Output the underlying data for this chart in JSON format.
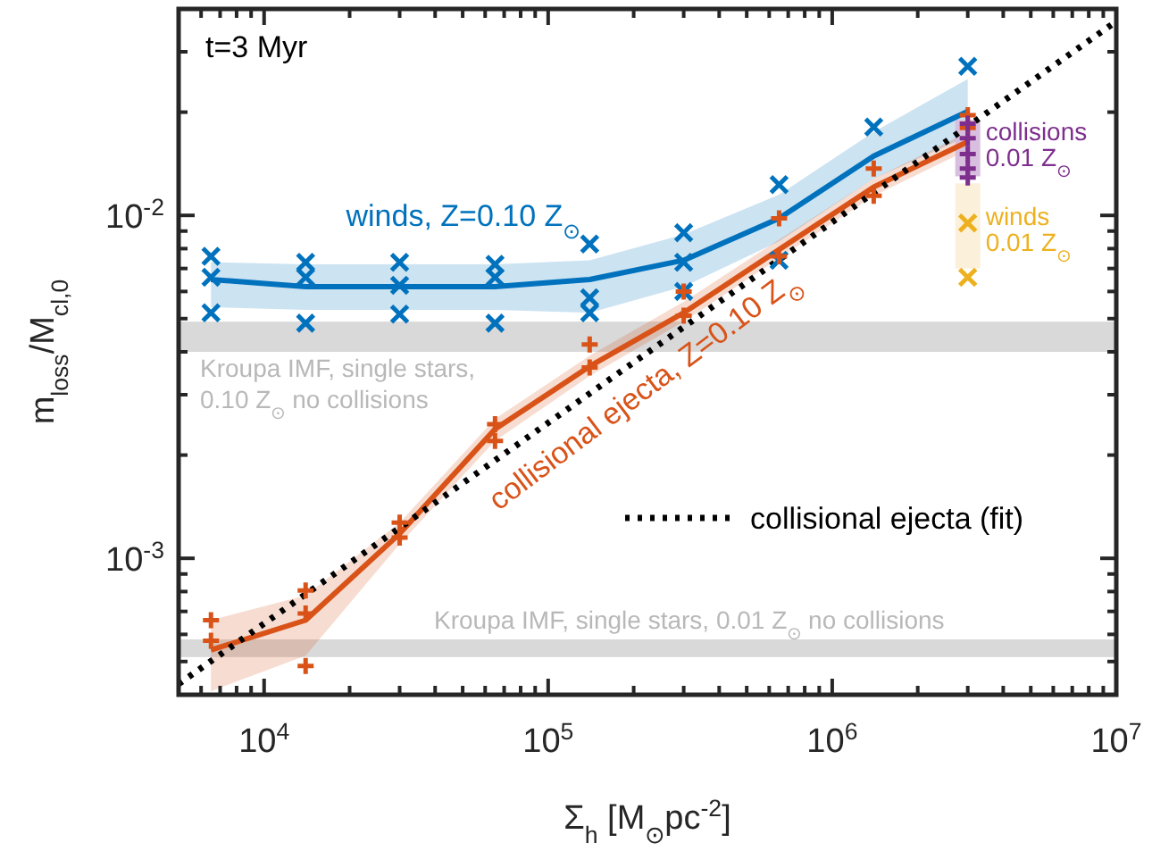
{
  "chart_data": {
    "type": "line",
    "xlabel": "Σ$_{h}$ [M$_{⊙}$pc$^{-2}$]",
    "ylabel": "m$_{loss}$/M$_{cl,0}$",
    "log": "xy",
    "xlim": [
      5000,
      10000000
    ],
    "ylim": [
      0.0004,
      0.04
    ],
    "xticks": [
      {
        "value": 6000,
        "label": null
      },
      {
        "value": 7000,
        "label": null
      },
      {
        "value": 8000,
        "label": null
      },
      {
        "value": 9000,
        "label": null
      },
      {
        "value": 10000,
        "label": "10$^{4}$"
      },
      {
        "value": 20000,
        "label": null
      },
      {
        "value": 30000,
        "label": null
      },
      {
        "value": 40000,
        "label": null
      },
      {
        "value": 50000,
        "label": null
      },
      {
        "value": 60000,
        "label": null
      },
      {
        "value": 70000,
        "label": null
      },
      {
        "value": 80000,
        "label": null
      },
      {
        "value": 90000,
        "label": null
      },
      {
        "value": 100000,
        "label": "10$^{5}$"
      },
      {
        "value": 200000,
        "label": null
      },
      {
        "value": 300000,
        "label": null
      },
      {
        "value": 400000,
        "label": null
      },
      {
        "value": 500000,
        "label": null
      },
      {
        "value": 600000,
        "label": null
      },
      {
        "value": 700000,
        "label": null
      },
      {
        "value": 800000,
        "label": null
      },
      {
        "value": 900000,
        "label": null
      },
      {
        "value": 1000000,
        "label": "10$^{6}$"
      },
      {
        "value": 2000000,
        "label": null
      },
      {
        "value": 3000000,
        "label": null
      },
      {
        "value": 4000000,
        "label": null
      },
      {
        "value": 5000000,
        "label": null
      },
      {
        "value": 6000000,
        "label": null
      },
      {
        "value": 7000000,
        "label": null
      },
      {
        "value": 8000000,
        "label": null
      },
      {
        "value": 9000000,
        "label": null
      },
      {
        "value": 10000000,
        "label": "10$^{7}$"
      }
    ],
    "yticks": [
      {
        "value": 0.0005,
        "label": null
      },
      {
        "value": 0.0006,
        "label": null
      },
      {
        "value": 0.0007,
        "label": null
      },
      {
        "value": 0.0008,
        "label": null
      },
      {
        "value": 0.0009,
        "label": null
      },
      {
        "value": 0.001,
        "label": "10$^{-3}$"
      },
      {
        "value": 0.002,
        "label": null
      },
      {
        "value": 0.003,
        "label": null
      },
      {
        "value": 0.004,
        "label": null
      },
      {
        "value": 0.005,
        "label": null
      },
      {
        "value": 0.006,
        "label": null
      },
      {
        "value": 0.007,
        "label": null
      },
      {
        "value": 0.008,
        "label": null
      },
      {
        "value": 0.009,
        "label": null
      },
      {
        "value": 0.01,
        "label": "10$^{-2}$"
      },
      {
        "value": 0.02,
        "label": null
      },
      {
        "value": 0.03,
        "label": null
      }
    ],
    "grid": false,
    "legend": "right",
    "annotations": [
      "t=3 Myr"
    ],
    "bands": [
      {
        "axis": "y",
        "from": 0.004,
        "to": 0.0049,
        "label": "Kroupa IMF, single stars,\n0.10 Z$_{⊙}$ no collisions",
        "color": "#d9d9d9"
      },
      {
        "axis": "y",
        "from": 0.000515,
        "to": 0.00058,
        "label": "Kroupa IMF, single stars, 0.01 Z$_{⊙}$ no collisions",
        "color": "#d9d9d9"
      }
    ],
    "series": [
      {
        "name": "winds, Z=0.10 Z$_{⊙}$",
        "color": "#0072bd",
        "marker": "none",
        "line_style": "solid",
        "x": [
          6500,
          14000,
          30000,
          65000,
          140000,
          300000,
          650000,
          1400000,
          3000000
        ],
        "values": [
          0.0065,
          0.0062,
          0.0062,
          0.0062,
          0.0065,
          0.0074,
          0.0098,
          0.0149,
          0.0201
        ],
        "lower": [
          0.0054,
          0.0053,
          0.0053,
          0.0053,
          0.0052,
          0.0062,
          0.0084,
          0.0128,
          0.017
        ],
        "upper": [
          0.0073,
          0.0072,
          0.0072,
          0.0072,
          0.0074,
          0.0088,
          0.0115,
          0.0175,
          0.025
        ]
      },
      {
        "type": "scatter",
        "color": "#0072bd",
        "marker": "cross",
        "x": [
          6500,
          6500,
          6500,
          14000,
          14000,
          14000,
          30000,
          30000,
          30000,
          65000,
          65000,
          65000,
          140000,
          140000,
          140000,
          300000,
          300000,
          300000,
          650000,
          650000,
          1400000,
          3000000
        ],
        "values": [
          0.0076,
          0.0066,
          0.0052,
          0.0073,
          0.0066,
          0.00485,
          0.0073,
          0.00625,
          0.00515,
          0.0072,
          0.0066,
          0.00485,
          0.00825,
          0.00575,
          0.0052,
          0.0089,
          0.0073,
          0.006,
          0.0123,
          0.0074,
          0.0181,
          0.0272
        ]
      },
      {
        "name": "collisional ejecta, Z=0.10 Z$_{⊙}$",
        "color": "#d95319",
        "marker": "none",
        "line_style": "solid",
        "x": [
          6500,
          14000,
          30000,
          65000,
          140000,
          300000,
          650000,
          1400000,
          3000000
        ],
        "values": [
          0.00054,
          0.00066,
          0.00118,
          0.00238,
          0.00363,
          0.0052,
          0.00795,
          0.0121,
          0.0164
        ],
        "lower": [
          0.00041,
          0.00052,
          0.0011,
          0.0022,
          0.0034,
          0.0049,
          0.0075,
          0.0114,
          0.0155
        ],
        "upper": [
          0.00066,
          0.00078,
          0.00127,
          0.00255,
          0.0039,
          0.0056,
          0.0085,
          0.0128,
          0.0175
        ]
      },
      {
        "type": "scatter",
        "color": "#d95319",
        "marker": "plus",
        "x": [
          6500,
          6500,
          14000,
          14000,
          14000,
          30000,
          30000,
          65000,
          65000,
          140000,
          140000,
          300000,
          300000,
          650000,
          650000,
          1400000,
          1400000,
          3000000,
          3000000
        ],
        "values": [
          0.00066,
          0.000575,
          0.000805,
          0.00069,
          0.000485,
          0.00127,
          0.00115,
          0.00246,
          0.0022,
          0.0042,
          0.0036,
          0.006,
          0.0051,
          0.0098,
          0.0076,
          0.0137,
          0.0114,
          0.0196,
          0.018
        ]
      },
      {
        "type": "scatter",
        "name": "collisions\n0.01 Z$_{⊙}$",
        "color": "#7e2f8e",
        "marker": "plus",
        "x": [
          3000000,
          3000000,
          3000000,
          3000000,
          3000000
        ],
        "values": [
          0.0185,
          0.0168,
          0.0151,
          0.0137,
          0.0129
        ]
      },
      {
        "type": "scatter",
        "name": "winds\n0.01 Z$_{⊙}$",
        "color": "#edb120",
        "marker": "cross",
        "x": [
          3000000,
          3000000
        ],
        "values": [
          0.0095,
          0.0066
        ]
      },
      {
        "name": "collisional ejecta (fit)",
        "color": "#000000",
        "marker": "none",
        "line_style": "dotted",
        "x": [
          5000,
          10000000
        ],
        "values": [
          0.00043,
          0.0368
        ]
      },
      {
        "type": "bar",
        "color": "#d9bfdf",
        "x": [
          3000000
        ],
        "base": [
          0.013
        ],
        "values": [
          0.006
        ]
      },
      {
        "type": "bar",
        "color": "#fbf0d9",
        "x": [
          3000000
        ],
        "base": [
          0.007
        ],
        "values": [
          0.0054
        ]
      }
    ]
  }
}
